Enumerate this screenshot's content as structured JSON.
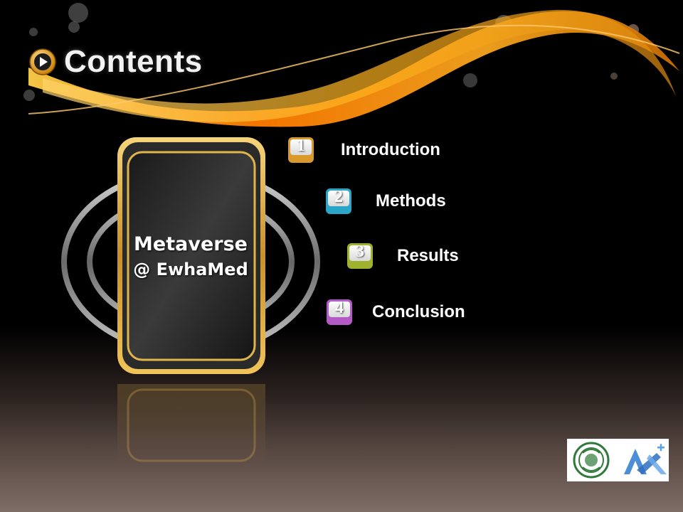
{
  "slide": {
    "title": "Contents",
    "phone_label_line1": "Metaverse",
    "phone_label_line2": "@ EwhaMed"
  },
  "items": [
    {
      "number": "1",
      "label": "Introduction",
      "color": "#d99a2b"
    },
    {
      "number": "2",
      "label": "Methods",
      "color": "#2aa6c9"
    },
    {
      "number": "3",
      "label": "Results",
      "color": "#9fb12f"
    },
    {
      "number": "4",
      "label": "Conclusion",
      "color": "#b45ac6"
    }
  ],
  "icons": {
    "title_icon": "play-circle-icon",
    "logo_left": "university-seal-logo",
    "logo_right": "a-plus-logo"
  },
  "colors": {
    "swoosh_orange": "#ff7a00",
    "swoosh_gold": "#f2a322",
    "frame_gold": "#e0b44a"
  }
}
